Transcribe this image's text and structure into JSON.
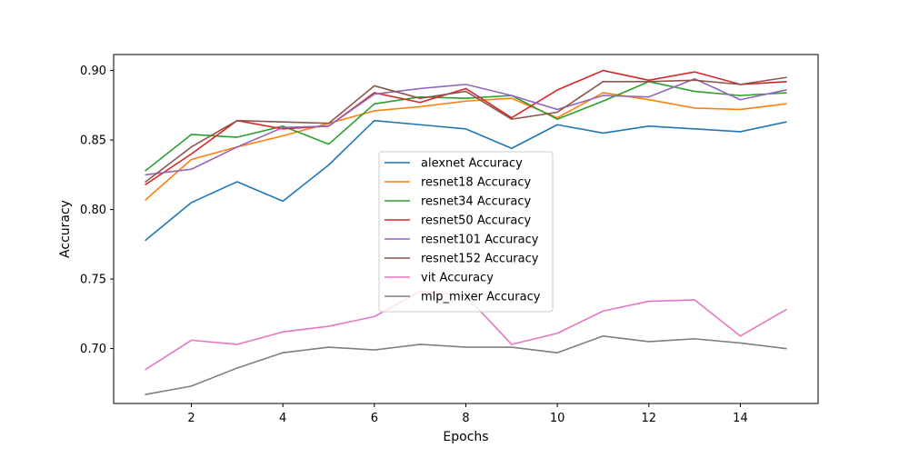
{
  "chart_data": {
    "type": "line",
    "title": "",
    "xlabel": "Epochs",
    "ylabel": "Accuracy",
    "x": [
      1,
      2,
      3,
      4,
      5,
      6,
      7,
      8,
      9,
      10,
      11,
      12,
      13,
      14,
      15
    ],
    "xlim": [
      0.3,
      15.7
    ],
    "ylim": [
      0.6605,
      0.9115
    ],
    "xticks": [
      2,
      4,
      6,
      8,
      10,
      12,
      14
    ],
    "yticks": [
      0.7,
      0.75,
      0.8,
      0.85,
      0.9
    ],
    "xtick_labels": [
      "2",
      "4",
      "6",
      "8",
      "10",
      "12",
      "14"
    ],
    "ytick_labels": [
      "0.70",
      "0.75",
      "0.80",
      "0.85",
      "0.90"
    ],
    "grid": false,
    "legend": "center",
    "series": [
      {
        "name": "alexnet Accuracy",
        "color": "#1f77b4",
        "values": [
          0.778,
          0.805,
          0.82,
          0.806,
          0.832,
          0.864,
          0.861,
          0.858,
          0.844,
          0.861,
          0.855,
          0.86,
          0.858,
          0.856,
          0.863
        ]
      },
      {
        "name": "resnet18 Accuracy",
        "color": "#ff7f0e",
        "values": [
          0.807,
          0.836,
          0.845,
          0.853,
          0.862,
          0.871,
          0.874,
          0.878,
          0.88,
          0.866,
          0.884,
          0.879,
          0.873,
          0.872,
          0.876
        ]
      },
      {
        "name": "resnet34 Accuracy",
        "color": "#2ca02c",
        "values": [
          0.828,
          0.854,
          0.852,
          0.86,
          0.847,
          0.876,
          0.881,
          0.88,
          0.882,
          0.865,
          0.878,
          0.892,
          0.885,
          0.882,
          0.884
        ]
      },
      {
        "name": "resnet50 Accuracy",
        "color": "#d62728",
        "values": [
          0.818,
          0.84,
          0.864,
          0.858,
          0.86,
          0.884,
          0.877,
          0.887,
          0.866,
          0.886,
          0.9,
          0.893,
          0.899,
          0.89,
          0.892
        ]
      },
      {
        "name": "resnet101 Accuracy",
        "color": "#9467bd",
        "values": [
          0.825,
          0.829,
          0.845,
          0.859,
          0.86,
          0.883,
          0.887,
          0.89,
          0.882,
          0.872,
          0.882,
          0.881,
          0.894,
          0.879,
          0.886
        ]
      },
      {
        "name": "resnet152 Accuracy",
        "color": "#8c564b",
        "values": [
          0.82,
          0.845,
          0.864,
          0.863,
          0.862,
          0.889,
          0.88,
          0.885,
          0.865,
          0.87,
          0.892,
          0.892,
          0.893,
          0.89,
          0.895
        ]
      },
      {
        "name": "vit Accuracy",
        "color": "#e377c2",
        "values": [
          0.685,
          0.706,
          0.703,
          0.712,
          0.716,
          0.723,
          0.741,
          0.738,
          0.703,
          0.711,
          0.727,
          0.734,
          0.735,
          0.709,
          0.728
        ]
      },
      {
        "name": "mlp_mixer Accuracy",
        "color": "#7f7f7f",
        "values": [
          0.667,
          0.673,
          0.686,
          0.697,
          0.701,
          0.699,
          0.703,
          0.701,
          0.701,
          0.697,
          0.709,
          0.705,
          0.707,
          0.704,
          0.7
        ]
      }
    ]
  }
}
